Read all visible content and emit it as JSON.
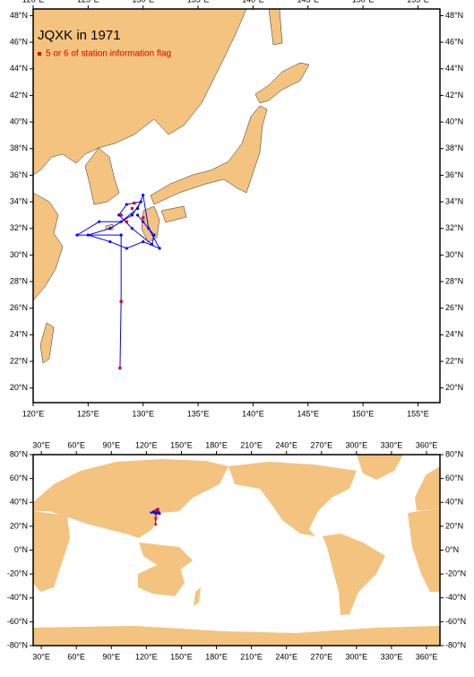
{
  "title": "JQXK in 1971",
  "legend": {
    "label": "5 or 6 of station information flag",
    "color": "#e00000"
  },
  "track": {
    "color": "#0000ff",
    "lon": [
      127.9,
      128,
      128,
      124,
      126,
      128,
      129.5,
      130,
      130.5,
      131.5,
      130,
      128.5,
      127,
      125,
      127,
      129,
      129.8,
      128.5,
      127.8,
      129,
      130.8,
      131,
      130,
      129.5
    ],
    "lat": [
      21.5,
      26.5,
      31.5,
      31.5,
      32.5,
      32.5,
      33.5,
      34.5,
      32,
      30.5,
      31,
      30.5,
      31,
      31.5,
      32,
      33,
      34,
      33.8,
      33,
      32,
      30.8,
      31.5,
      32.5,
      33
    ]
  },
  "flagged": {
    "lon": [
      127.9,
      128,
      128,
      129,
      128.5,
      130,
      129.2
    ],
    "lat": [
      21.5,
      26.5,
      33,
      33.5,
      32.5,
      32.8,
      33.9
    ]
  },
  "top_map": {
    "xlim": [
      120,
      157
    ],
    "ylim": [
      18.9,
      48.5
    ],
    "xticks": [
      {
        "value": 120,
        "label": "120°E"
      },
      {
        "value": 125,
        "label": "125°E"
      },
      {
        "value": 130,
        "label": "130°E"
      },
      {
        "value": 135,
        "label": "135°E"
      },
      {
        "value": 140,
        "label": "140°E"
      },
      {
        "value": 145,
        "label": "145°E"
      },
      {
        "value": 150,
        "label": "150°E"
      },
      {
        "value": 155,
        "label": "155°E"
      }
    ],
    "yticks": [
      {
        "value": 20,
        "label": "20°N"
      },
      {
        "value": 22,
        "label": "22°N"
      },
      {
        "value": 24,
        "label": "24°N"
      },
      {
        "value": 26,
        "label": "26°N"
      },
      {
        "value": 28,
        "label": "28°N"
      },
      {
        "value": 30,
        "label": "30°N"
      },
      {
        "value": 32,
        "label": "32°N"
      },
      {
        "value": 34,
        "label": "34°N"
      },
      {
        "value": 36,
        "label": "36°N"
      },
      {
        "value": 38,
        "label": "38°N"
      },
      {
        "value": 40,
        "label": "40°N"
      },
      {
        "value": 42,
        "label": "42°N"
      },
      {
        "value": 44,
        "label": "44°N"
      },
      {
        "value": 46,
        "label": "46°N"
      },
      {
        "value": 48,
        "label": "48°N"
      }
    ]
  },
  "world_map": {
    "xlim": [
      23,
      371.5
    ],
    "ylim": [
      -80,
      80
    ],
    "xticks": [
      {
        "value": 30,
        "label": "30°E"
      },
      {
        "value": 60,
        "label": "60°E"
      },
      {
        "value": 90,
        "label": "90°E"
      },
      {
        "value": 120,
        "label": "120°E"
      },
      {
        "value": 150,
        "label": "150°E"
      },
      {
        "value": 180,
        "label": "180°E"
      },
      {
        "value": 210,
        "label": "210°E"
      },
      {
        "value": 240,
        "label": "240°E"
      },
      {
        "value": 270,
        "label": "270°E"
      },
      {
        "value": 300,
        "label": "300°E"
      },
      {
        "value": 330,
        "label": "330°E"
      },
      {
        "value": 360,
        "label": "360°E"
      }
    ],
    "yticks": [
      {
        "value": 80,
        "label": "80°N"
      },
      {
        "value": 60,
        "label": "60°N"
      },
      {
        "value": 40,
        "label": "40°N"
      },
      {
        "value": 20,
        "label": "20°N"
      },
      {
        "value": 0,
        "label": "0°N"
      },
      {
        "value": -20,
        "label": "-20°N"
      },
      {
        "value": -40,
        "label": "-40°N"
      },
      {
        "value": -60,
        "label": "-60°N"
      },
      {
        "value": -80,
        "label": "-80°N"
      }
    ]
  }
}
